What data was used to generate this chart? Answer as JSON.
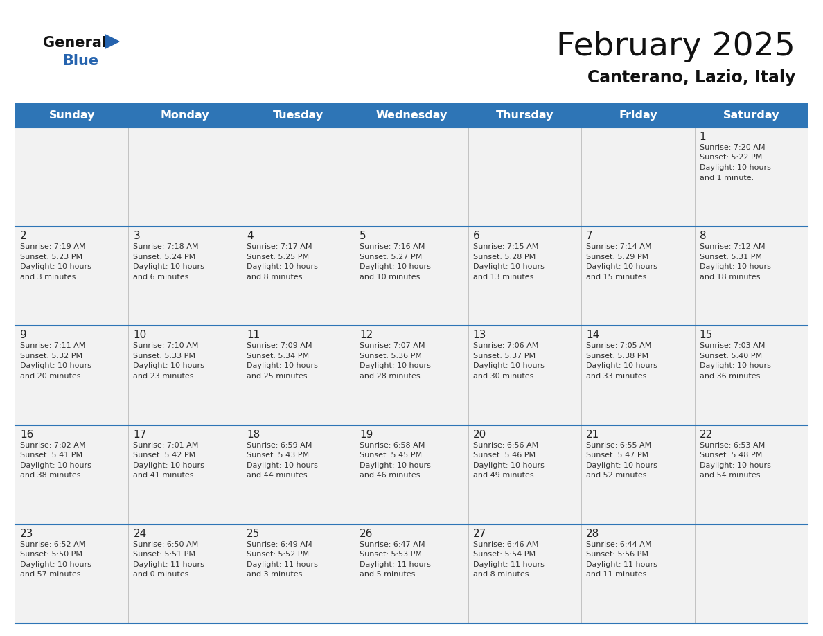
{
  "title": "February 2025",
  "subtitle": "Canterano, Lazio, Italy",
  "header_color": "#2e75b6",
  "header_text_color": "#ffffff",
  "days_of_week": [
    "Sunday",
    "Monday",
    "Tuesday",
    "Wednesday",
    "Thursday",
    "Friday",
    "Saturday"
  ],
  "bg_color": "#ffffff",
  "cell_bg": "#f2f2f2",
  "grid_line_color": "#2e75b6",
  "day_number_color": "#222222",
  "info_text_color": "#333333",
  "calendar": [
    [
      null,
      null,
      null,
      null,
      null,
      null,
      {
        "day": 1,
        "sunrise": "7:20 AM",
        "sunset": "5:22 PM",
        "daylight": "10 hours",
        "daylight2": "and 1 minute."
      }
    ],
    [
      {
        "day": 2,
        "sunrise": "7:19 AM",
        "sunset": "5:23 PM",
        "daylight": "10 hours",
        "daylight2": "and 3 minutes."
      },
      {
        "day": 3,
        "sunrise": "7:18 AM",
        "sunset": "5:24 PM",
        "daylight": "10 hours",
        "daylight2": "and 6 minutes."
      },
      {
        "day": 4,
        "sunrise": "7:17 AM",
        "sunset": "5:25 PM",
        "daylight": "10 hours",
        "daylight2": "and 8 minutes."
      },
      {
        "day": 5,
        "sunrise": "7:16 AM",
        "sunset": "5:27 PM",
        "daylight": "10 hours",
        "daylight2": "and 10 minutes."
      },
      {
        "day": 6,
        "sunrise": "7:15 AM",
        "sunset": "5:28 PM",
        "daylight": "10 hours",
        "daylight2": "and 13 minutes."
      },
      {
        "day": 7,
        "sunrise": "7:14 AM",
        "sunset": "5:29 PM",
        "daylight": "10 hours",
        "daylight2": "and 15 minutes."
      },
      {
        "day": 8,
        "sunrise": "7:12 AM",
        "sunset": "5:31 PM",
        "daylight": "10 hours",
        "daylight2": "and 18 minutes."
      }
    ],
    [
      {
        "day": 9,
        "sunrise": "7:11 AM",
        "sunset": "5:32 PM",
        "daylight": "10 hours",
        "daylight2": "and 20 minutes."
      },
      {
        "day": 10,
        "sunrise": "7:10 AM",
        "sunset": "5:33 PM",
        "daylight": "10 hours",
        "daylight2": "and 23 minutes."
      },
      {
        "day": 11,
        "sunrise": "7:09 AM",
        "sunset": "5:34 PM",
        "daylight": "10 hours",
        "daylight2": "and 25 minutes."
      },
      {
        "day": 12,
        "sunrise": "7:07 AM",
        "sunset": "5:36 PM",
        "daylight": "10 hours",
        "daylight2": "and 28 minutes."
      },
      {
        "day": 13,
        "sunrise": "7:06 AM",
        "sunset": "5:37 PM",
        "daylight": "10 hours",
        "daylight2": "and 30 minutes."
      },
      {
        "day": 14,
        "sunrise": "7:05 AM",
        "sunset": "5:38 PM",
        "daylight": "10 hours",
        "daylight2": "and 33 minutes."
      },
      {
        "day": 15,
        "sunrise": "7:03 AM",
        "sunset": "5:40 PM",
        "daylight": "10 hours",
        "daylight2": "and 36 minutes."
      }
    ],
    [
      {
        "day": 16,
        "sunrise": "7:02 AM",
        "sunset": "5:41 PM",
        "daylight": "10 hours",
        "daylight2": "and 38 minutes."
      },
      {
        "day": 17,
        "sunrise": "7:01 AM",
        "sunset": "5:42 PM",
        "daylight": "10 hours",
        "daylight2": "and 41 minutes."
      },
      {
        "day": 18,
        "sunrise": "6:59 AM",
        "sunset": "5:43 PM",
        "daylight": "10 hours",
        "daylight2": "and 44 minutes."
      },
      {
        "day": 19,
        "sunrise": "6:58 AM",
        "sunset": "5:45 PM",
        "daylight": "10 hours",
        "daylight2": "and 46 minutes."
      },
      {
        "day": 20,
        "sunrise": "6:56 AM",
        "sunset": "5:46 PM",
        "daylight": "10 hours",
        "daylight2": "and 49 minutes."
      },
      {
        "day": 21,
        "sunrise": "6:55 AM",
        "sunset": "5:47 PM",
        "daylight": "10 hours",
        "daylight2": "and 52 minutes."
      },
      {
        "day": 22,
        "sunrise": "6:53 AM",
        "sunset": "5:48 PM",
        "daylight": "10 hours",
        "daylight2": "and 54 minutes."
      }
    ],
    [
      {
        "day": 23,
        "sunrise": "6:52 AM",
        "sunset": "5:50 PM",
        "daylight": "10 hours",
        "daylight2": "and 57 minutes."
      },
      {
        "day": 24,
        "sunrise": "6:50 AM",
        "sunset": "5:51 PM",
        "daylight": "11 hours",
        "daylight2": "and 0 minutes."
      },
      {
        "day": 25,
        "sunrise": "6:49 AM",
        "sunset": "5:52 PM",
        "daylight": "11 hours",
        "daylight2": "and 3 minutes."
      },
      {
        "day": 26,
        "sunrise": "6:47 AM",
        "sunset": "5:53 PM",
        "daylight": "11 hours",
        "daylight2": "and 5 minutes."
      },
      {
        "day": 27,
        "sunrise": "6:46 AM",
        "sunset": "5:54 PM",
        "daylight": "11 hours",
        "daylight2": "and 8 minutes."
      },
      {
        "day": 28,
        "sunrise": "6:44 AM",
        "sunset": "5:56 PM",
        "daylight": "11 hours",
        "daylight2": "and 11 minutes."
      },
      null
    ]
  ]
}
